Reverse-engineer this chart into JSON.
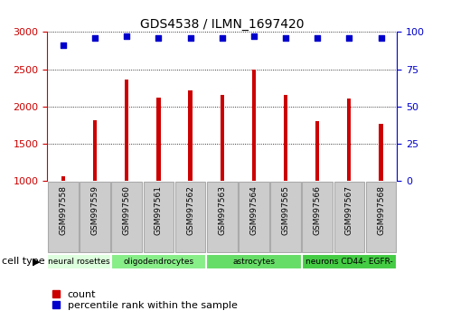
{
  "title": "GDS4538 / ILMN_1697420",
  "samples": [
    "GSM997558",
    "GSM997559",
    "GSM997560",
    "GSM997561",
    "GSM997562",
    "GSM997563",
    "GSM997564",
    "GSM997565",
    "GSM997566",
    "GSM997567",
    "GSM997568"
  ],
  "counts": [
    1060,
    1820,
    2360,
    2120,
    2220,
    2160,
    2490,
    2150,
    1800,
    2110,
    1770
  ],
  "percentiles": [
    91,
    96,
    97,
    96,
    96,
    96,
    97,
    96,
    96,
    96,
    96
  ],
  "ylim_left": [
    1000,
    3000
  ],
  "ylim_right": [
    0,
    100
  ],
  "yticks_left": [
    1000,
    1500,
    2000,
    2500,
    3000
  ],
  "yticks_right": [
    0,
    25,
    50,
    75,
    100
  ],
  "bar_color": "#cc0000",
  "scatter_color": "#0000cc",
  "cell_types": [
    {
      "label": "neural rosettes",
      "start": 0,
      "end": 2,
      "color": "#ddffdd"
    },
    {
      "label": "oligodendrocytes",
      "start": 2,
      "end": 5,
      "color": "#88ee88"
    },
    {
      "label": "astrocytes",
      "start": 5,
      "end": 8,
      "color": "#66dd66"
    },
    {
      "label": "neurons CD44- EGFR-",
      "start": 8,
      "end": 11,
      "color": "#44cc44"
    }
  ],
  "cell_type_label": "cell type",
  "legend_count_label": "count",
  "legend_percentile_label": "percentile rank within the sample",
  "gray_box_color": "#cccccc",
  "gray_box_edge": "#aaaaaa"
}
